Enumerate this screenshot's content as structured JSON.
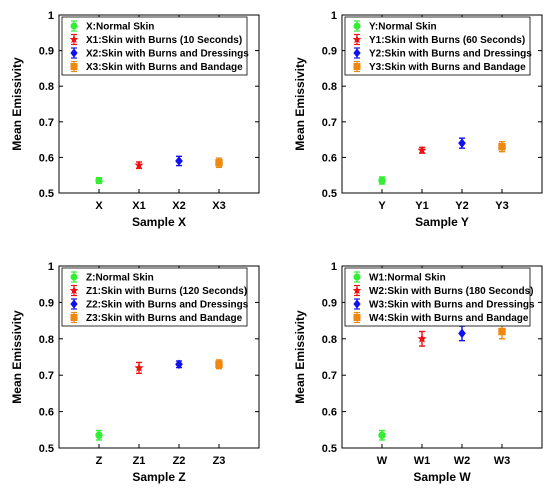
{
  "chart_data": [
    {
      "type": "scatter",
      "panel": "X",
      "categories": [
        "X",
        "X1",
        "X2",
        "X3"
      ],
      "xlabel": "Sample X",
      "ylabel": "Mean Emissivity",
      "ylim": [
        0.5,
        1
      ],
      "yticks": [
        0.5,
        0.6,
        0.7,
        0.8,
        0.9,
        1
      ],
      "legend_position": "top-left",
      "series": [
        {
          "name": "X:Normal Skin",
          "category": "X",
          "value": 0.535,
          "error": 0.008,
          "color": "#33ee33",
          "marker": "circle"
        },
        {
          "name": "X1:Skin with Burns (10 Seconds)",
          "category": "X1",
          "value": 0.578,
          "error": 0.009,
          "color": "#ee1111",
          "marker": "star"
        },
        {
          "name": "X2:Skin with Burns and Dressings",
          "category": "X2",
          "value": 0.59,
          "error": 0.013,
          "color": "#1111ee",
          "marker": "diamond"
        },
        {
          "name": "X3:Skin with Burns and Bandage",
          "category": "X3",
          "value": 0.585,
          "error": 0.013,
          "color": "#ee8811",
          "marker": "square"
        }
      ]
    },
    {
      "type": "scatter",
      "panel": "Y",
      "categories": [
        "Y",
        "Y1",
        "Y2",
        "Y3"
      ],
      "xlabel": "Sample Y",
      "ylabel": "Mean Emissivity",
      "ylim": [
        0.5,
        1
      ],
      "yticks": [
        0.5,
        0.6,
        0.7,
        0.8,
        0.9,
        1
      ],
      "legend_position": "top-left",
      "series": [
        {
          "name": "Y:Normal Skin",
          "category": "Y",
          "value": 0.535,
          "error": 0.01,
          "color": "#33ee33",
          "marker": "circle"
        },
        {
          "name": "Y1:Skin with Burns (60 Seconds)",
          "category": "Y1",
          "value": 0.62,
          "error": 0.008,
          "color": "#ee1111",
          "marker": "star"
        },
        {
          "name": "Y2:Skin with Burns and Dressings",
          "category": "Y2",
          "value": 0.64,
          "error": 0.014,
          "color": "#1111ee",
          "marker": "diamond"
        },
        {
          "name": "Y3:Skin with Burns and Bandage",
          "category": "Y3",
          "value": 0.63,
          "error": 0.014,
          "color": "#ee8811",
          "marker": "square"
        }
      ]
    },
    {
      "type": "scatter",
      "panel": "Z",
      "categories": [
        "Z",
        "Z1",
        "Z2",
        "Z3"
      ],
      "xlabel": "Sample Z",
      "ylabel": "Mean Emissivity",
      "ylim": [
        0.5,
        1
      ],
      "yticks": [
        0.5,
        0.6,
        0.7,
        0.8,
        0.9,
        1
      ],
      "legend_position": "top-left",
      "series": [
        {
          "name": "Z:Normal Skin",
          "category": "Z",
          "value": 0.535,
          "error": 0.013,
          "color": "#33ee33",
          "marker": "circle"
        },
        {
          "name": "Z1:Skin with Burns (120 Seconds)",
          "category": "Z1",
          "value": 0.72,
          "error": 0.015,
          "color": "#ee1111",
          "marker": "star"
        },
        {
          "name": "Z2:Skin with Burns and Dressings",
          "category": "Z2",
          "value": 0.73,
          "error": 0.009,
          "color": "#1111ee",
          "marker": "diamond"
        },
        {
          "name": "Z3:Skin with Burns and Bandage",
          "category": "Z3",
          "value": 0.73,
          "error": 0.012,
          "color": "#ee8811",
          "marker": "square"
        }
      ]
    },
    {
      "type": "scatter",
      "panel": "W",
      "categories": [
        "W",
        "W1",
        "W2",
        "W3"
      ],
      "xlabel": "Sample W",
      "ylabel": "Mean Emissivity",
      "ylim": [
        0.5,
        1
      ],
      "yticks": [
        0.5,
        0.6,
        0.7,
        0.8,
        0.9,
        1
      ],
      "legend_position": "top-left",
      "series": [
        {
          "name": "W1:Normal Skin",
          "category": "W",
          "value": 0.535,
          "error": 0.013,
          "color": "#33ee33",
          "marker": "circle"
        },
        {
          "name": "W2:Skin with Burns (180 Seconds)",
          "category": "W1",
          "value": 0.8,
          "error": 0.02,
          "color": "#ee1111",
          "marker": "star"
        },
        {
          "name": "W3:Skin with Burns and Dressings",
          "category": "W2",
          "value": 0.815,
          "error": 0.02,
          "color": "#1111ee",
          "marker": "diamond"
        },
        {
          "name": "W4:Skin with Burns and Bandage",
          "category": "W3",
          "value": 0.82,
          "error": 0.02,
          "color": "#ee8811",
          "marker": "square"
        }
      ]
    }
  ]
}
